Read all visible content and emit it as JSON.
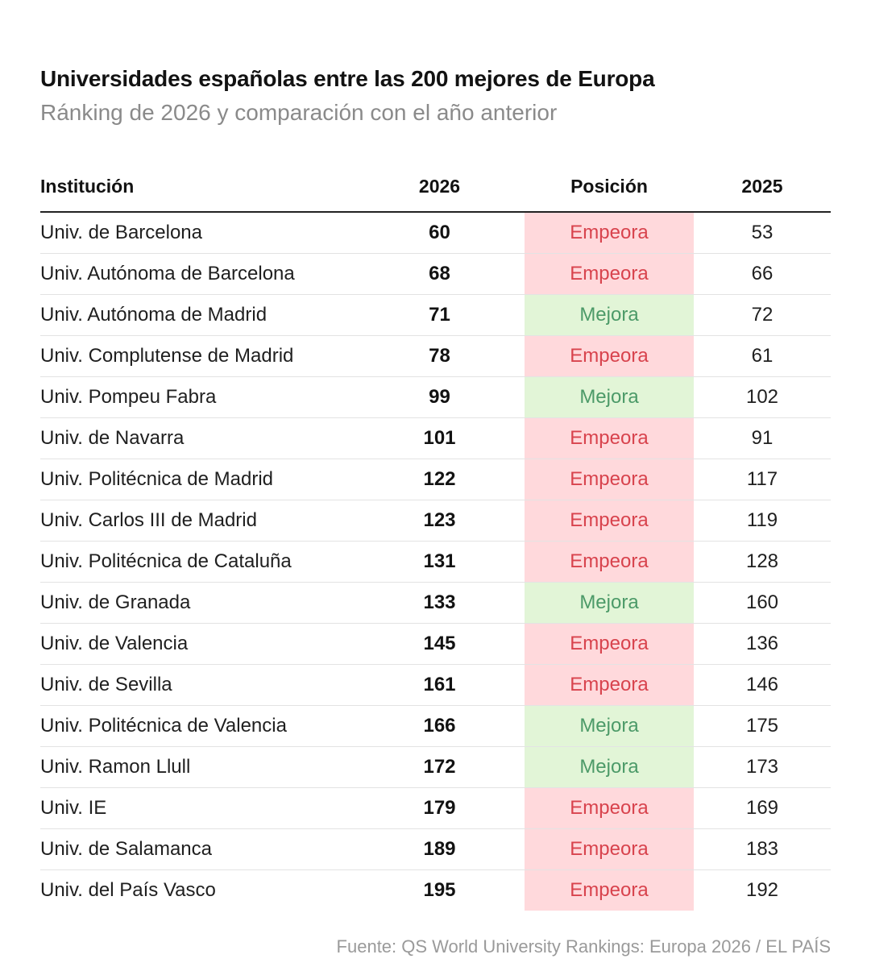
{
  "chart_data": {
    "type": "table",
    "title": "Universidades españolas entre las 200 mejores de Europa",
    "subtitle": "Ránking de 2026 y comparación con el año anterior",
    "columns": [
      "Institución",
      "2026",
      "Posición",
      "2025"
    ],
    "rows": [
      {
        "institution": "Univ. de Barcelona",
        "rank_2026": "60",
        "position": "Empeora",
        "rank_2025": "53"
      },
      {
        "institution": "Univ. Autónoma de Barcelona",
        "rank_2026": "68",
        "position": "Empeora",
        "rank_2025": "66"
      },
      {
        "institution": "Univ. Autónoma de Madrid",
        "rank_2026": "71",
        "position": "Mejora",
        "rank_2025": "72"
      },
      {
        "institution": "Univ. Complutense de Madrid",
        "rank_2026": "78",
        "position": "Empeora",
        "rank_2025": "61"
      },
      {
        "institution": "Univ. Pompeu Fabra",
        "rank_2026": "99",
        "position": "Mejora",
        "rank_2025": "102"
      },
      {
        "institution": "Univ. de Navarra",
        "rank_2026": "101",
        "position": "Empeora",
        "rank_2025": "91"
      },
      {
        "institution": "Univ. Politécnica de Madrid",
        "rank_2026": "122",
        "position": "Empeora",
        "rank_2025": "117"
      },
      {
        "institution": "Univ. Carlos III de Madrid",
        "rank_2026": "123",
        "position": "Empeora",
        "rank_2025": "119"
      },
      {
        "institution": "Univ. Politécnica de Cataluña",
        "rank_2026": "131",
        "position": "Empeora",
        "rank_2025": "128"
      },
      {
        "institution": "Univ. de Granada",
        "rank_2026": "133",
        "position": "Mejora",
        "rank_2025": "160"
      },
      {
        "institution": "Univ. de Valencia",
        "rank_2026": "145",
        "position": "Empeora",
        "rank_2025": "136"
      },
      {
        "institution": "Univ. de Sevilla",
        "rank_2026": "161",
        "position": "Empeora",
        "rank_2025": "146"
      },
      {
        "institution": "Univ. Politécnica de Valencia",
        "rank_2026": "166",
        "position": "Mejora",
        "rank_2025": "175"
      },
      {
        "institution": "Univ. Ramon Llull",
        "rank_2026": "172",
        "position": "Mejora",
        "rank_2025": "173"
      },
      {
        "institution": "Univ. IE",
        "rank_2026": "179",
        "position": "Empeora",
        "rank_2025": "169"
      },
      {
        "institution": "Univ. de Salamanca",
        "rank_2026": "189",
        "position": "Empeora",
        "rank_2025": "183"
      },
      {
        "institution": "Univ. del País Vasco",
        "rank_2026": "195",
        "position": "Empeora",
        "rank_2025": "192"
      }
    ],
    "source": "Fuente: QS World University Rankings: Europa 2026 / EL PAÍS"
  },
  "colors": {
    "worse_bg": "#ffd9dc",
    "worse_text": "#d8434d",
    "better_bg": "#e2f5d7",
    "better_text": "#4c9a68"
  }
}
